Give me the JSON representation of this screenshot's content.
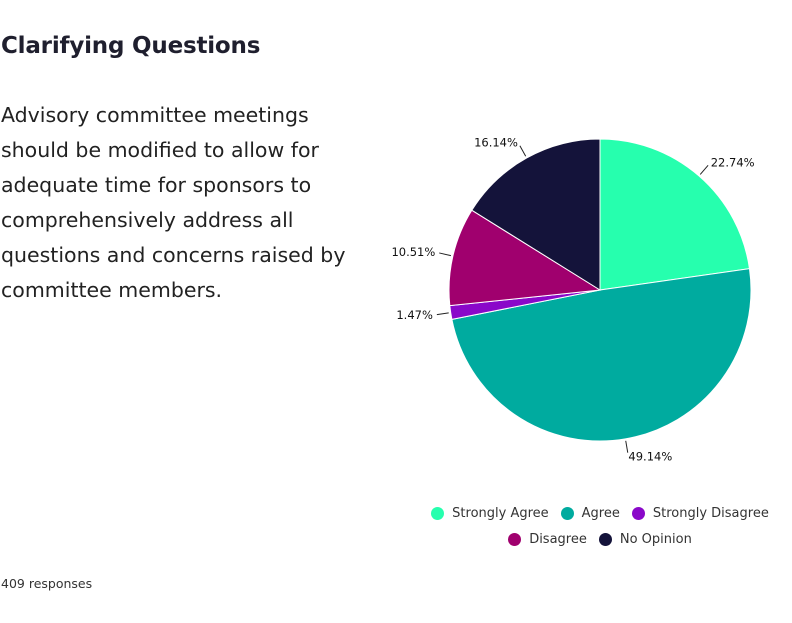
{
  "title": "Clarifying Questions",
  "question": "Advisory committee meetings should be modified to allow for adequate time for sponsors to comprehensively address all questions and concerns raised by committee members.",
  "responses": "409 responses",
  "chart_data": {
    "type": "pie",
    "title": "Clarifying Questions",
    "categories": [
      "Strongly Agree",
      "Agree",
      "Strongly Disagree",
      "Disagree",
      "No Opinion"
    ],
    "values": [
      22.74,
      49.14,
      1.47,
      10.51,
      16.14
    ],
    "labels": [
      "22.74%",
      "49.14%",
      "1.47%",
      "10.51%",
      "16.14%"
    ],
    "colors": [
      "#26ffae",
      "#00ab9f",
      "#8a08c9",
      "#a0006e",
      "#14133a"
    ],
    "legend_position": "bottom",
    "legend_rows": [
      [
        0,
        1,
        2
      ],
      [
        3,
        4
      ]
    ]
  }
}
